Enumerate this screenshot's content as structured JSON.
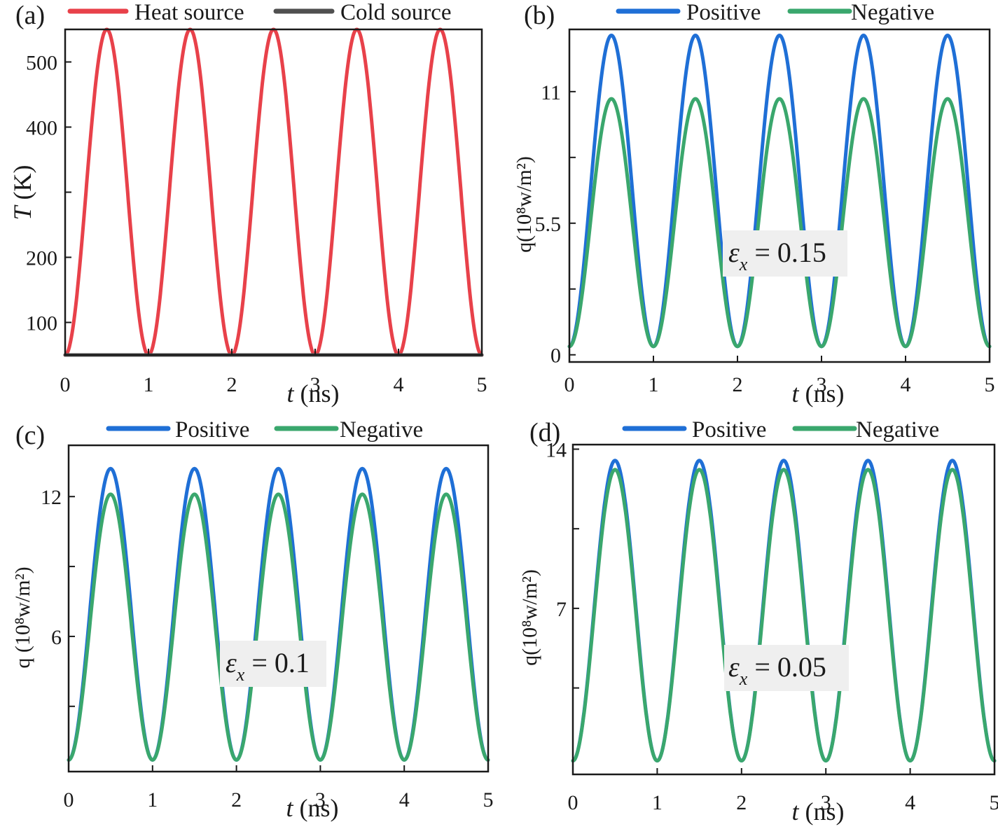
{
  "chart_data": [
    {
      "panel": "(a)",
      "type": "line",
      "xlabel_var": "t",
      "xlabel_unit": " (ns)",
      "ylabel_var": "T",
      "ylabel_unit": " (K)",
      "xlim": [
        0,
        5
      ],
      "ylim": [
        50,
        550
      ],
      "xticks": [
        0,
        1,
        2,
        3,
        4,
        5
      ],
      "xtick_labels": [
        "0",
        "1",
        "2",
        "3",
        "4",
        "5"
      ],
      "yticks": [
        100,
        200,
        300,
        400,
        500
      ],
      "ytick_labels": [
        "100",
        "200",
        "",
        "400",
        "500"
      ],
      "periods": 5,
      "series": [
        {
          "name": "Heat source",
          "color": "#e8414a",
          "shape": "cosine",
          "min": 50,
          "max": 550
        },
        {
          "name": "Cold source",
          "color": "#505050",
          "shape": "constant",
          "value": 50
        }
      ],
      "annotation": null
    },
    {
      "panel": "(b)",
      "type": "line",
      "xlabel_var": "t",
      "xlabel_unit": " (ns)",
      "ylabel": "q(10⁸w/m²)",
      "xlim": [
        0,
        5
      ],
      "ylim": [
        -0.3,
        13.6
      ],
      "xticks": [
        0,
        1,
        2,
        3,
        4,
        5
      ],
      "xtick_labels": [
        "0",
        "1",
        "2",
        "3",
        "4",
        "5"
      ],
      "yticks": [
        0,
        2.75,
        5.5,
        8.25,
        11
      ],
      "ytick_labels": [
        "0",
        "",
        "5.5",
        "",
        "11"
      ],
      "periods": 5,
      "series": [
        {
          "name": "Positive",
          "color": "#1f6fd6",
          "shape": "cosine",
          "min": 0.35,
          "max": 13.35
        },
        {
          "name": "Negative",
          "color": "#3aa76d",
          "shape": "cosine",
          "min": 0.35,
          "max": 10.7
        }
      ],
      "annotation": {
        "symbol": "ε",
        "sub": "x",
        "text": " = 0.15"
      }
    },
    {
      "panel": "(c)",
      "type": "line",
      "xlabel_var": "t",
      "xlabel_unit": " (ns)",
      "ylabel": "q (10⁸w/m²)",
      "xlim": [
        0,
        5
      ],
      "ylim": [
        0.2,
        14.2
      ],
      "xticks": [
        0,
        1,
        2,
        3,
        4,
        5
      ],
      "xtick_labels": [
        "0",
        "1",
        "2",
        "3",
        "4",
        "5"
      ],
      "yticks": [
        3,
        6,
        9,
        12
      ],
      "ytick_labels": [
        "",
        "6",
        "",
        "12"
      ],
      "periods": 5,
      "series": [
        {
          "name": "Positive",
          "color": "#1f6fd6",
          "shape": "cosine",
          "min": 0.7,
          "max": 13.2
        },
        {
          "name": "Negative",
          "color": "#3aa76d",
          "shape": "cosine",
          "min": 0.7,
          "max": 12.1
        }
      ],
      "annotation": {
        "symbol": "ε",
        "sub": "x",
        "text": " = 0.1"
      }
    },
    {
      "panel": "(d)",
      "type": "line",
      "xlabel_var": "t",
      "xlabel_unit": " (ns)",
      "ylabel": "q(10⁸w/m²)",
      "xlim": [
        0,
        5
      ],
      "ylim": [
        -0.3,
        14.2
      ],
      "xticks": [
        0,
        1,
        2,
        3,
        4,
        5
      ],
      "xtick_labels": [
        "0",
        "1",
        "2",
        "3",
        "4",
        "5"
      ],
      "yticks": [
        3.5,
        7,
        10.5,
        14
      ],
      "ytick_labels": [
        "",
        "7",
        "",
        "14"
      ],
      "periods": 5,
      "series": [
        {
          "name": "Positive",
          "color": "#1f6fd6",
          "shape": "cosine",
          "min": 0.3,
          "max": 13.5
        },
        {
          "name": "Negative",
          "color": "#3aa76d",
          "shape": "cosine",
          "min": 0.3,
          "max": 13.1
        }
      ],
      "annotation": {
        "symbol": "ε",
        "sub": "x",
        "text": " = 0.05"
      }
    }
  ]
}
